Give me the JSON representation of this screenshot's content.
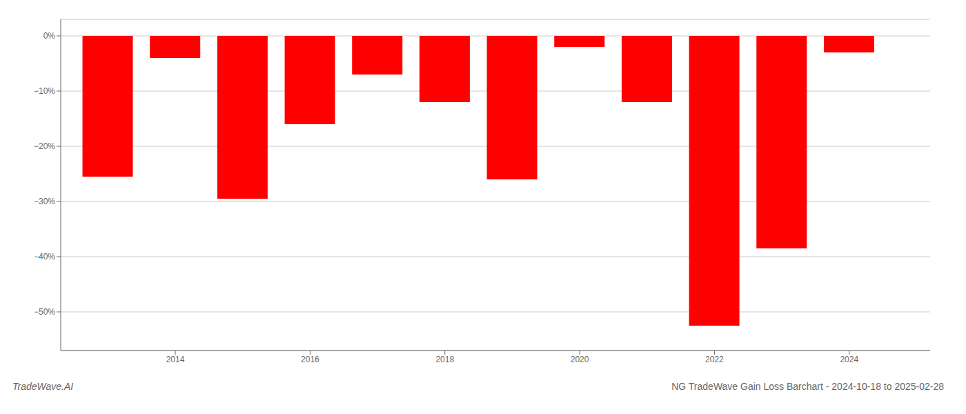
{
  "chart_data": {
    "type": "bar",
    "title": "NG TradeWave Gain Loss Barchart - 2024-10-18 to 2025-02-28",
    "annotations": [
      "TradeWave.AI"
    ],
    "x": [
      2013,
      2014,
      2015,
      2016,
      2017,
      2018,
      2019,
      2020,
      2021,
      2022,
      2023,
      2024
    ],
    "values": [
      -25.5,
      -4.0,
      -29.5,
      -16.0,
      -7.0,
      -12.0,
      -26.0,
      -2.0,
      -12.0,
      -52.5,
      -38.5,
      -3.0
    ],
    "color": "#ff0000",
    "xlim": [
      2012.3,
      2025.2
    ],
    "xticks": [
      2014,
      2016,
      2018,
      2020,
      2022,
      2024
    ],
    "ylim": [
      -57,
      3
    ],
    "yticks": [
      {
        "value": 0,
        "label": "0%"
      },
      {
        "value": -10,
        "label": "−10%"
      },
      {
        "value": -20,
        "label": "−20%"
      },
      {
        "value": -30,
        "label": "−30%"
      },
      {
        "value": -40,
        "label": "−40%"
      },
      {
        "value": -50,
        "label": "−50%"
      }
    ],
    "grid": true
  }
}
